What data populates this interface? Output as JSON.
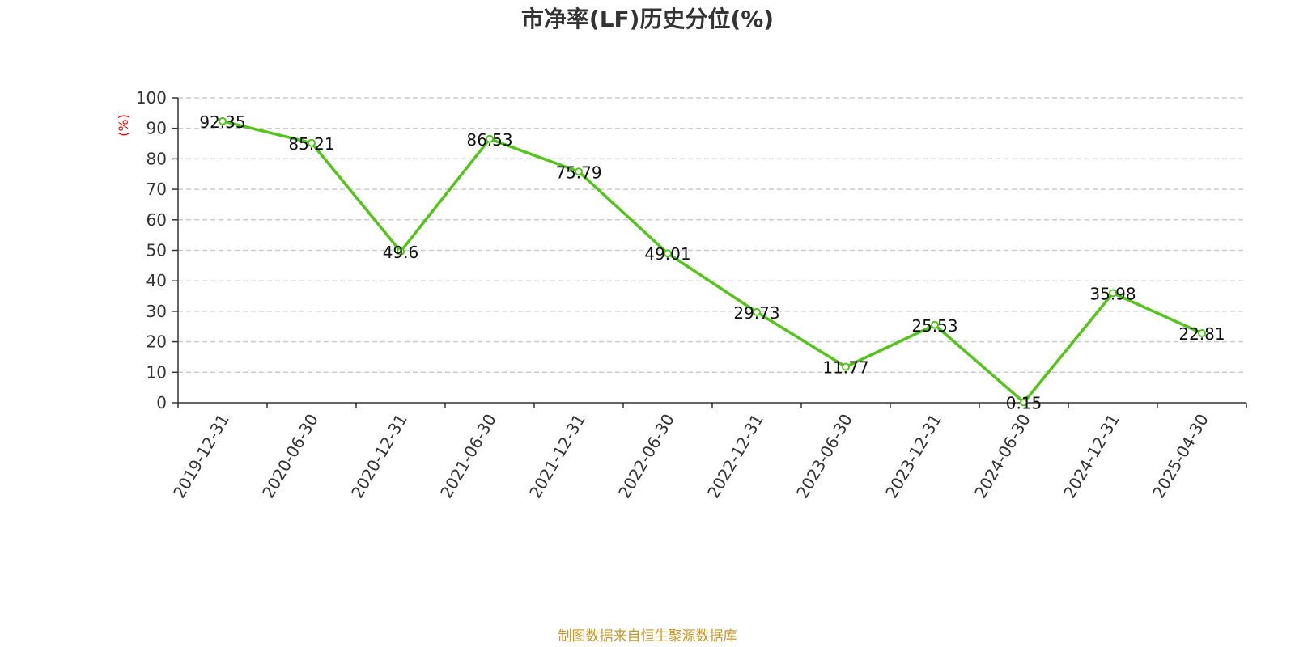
{
  "chart_data": {
    "type": "line",
    "title": "市净率(LF)历史分位(%)",
    "ylabel": "(%)",
    "xlabel": "",
    "ylim": [
      0,
      100
    ],
    "yticks": [
      0,
      10,
      20,
      30,
      40,
      50,
      60,
      70,
      80,
      90,
      100
    ],
    "grid": true,
    "categories": [
      "2019-12-31",
      "2020-06-30",
      "2020-12-31",
      "2021-06-30",
      "2021-12-31",
      "2022-06-30",
      "2022-12-31",
      "2023-06-30",
      "2023-12-31",
      "2024-06-30",
      "2024-12-31",
      "2025-04-30"
    ],
    "series": [
      {
        "values": [
          92.35,
          85.21,
          49.6,
          86.53,
          75.79,
          49.01,
          29.73,
          11.77,
          25.53,
          0.15,
          35.98,
          22.81
        ],
        "color": "#52c41a"
      }
    ]
  },
  "footer": {
    "source": "制图数据来自恒生聚源数据库"
  },
  "colors": {
    "line": "#52c41a",
    "unit_label": "#ff0000",
    "source": "#c8962a",
    "grid": "#cccccc",
    "axis": "#333333"
  }
}
